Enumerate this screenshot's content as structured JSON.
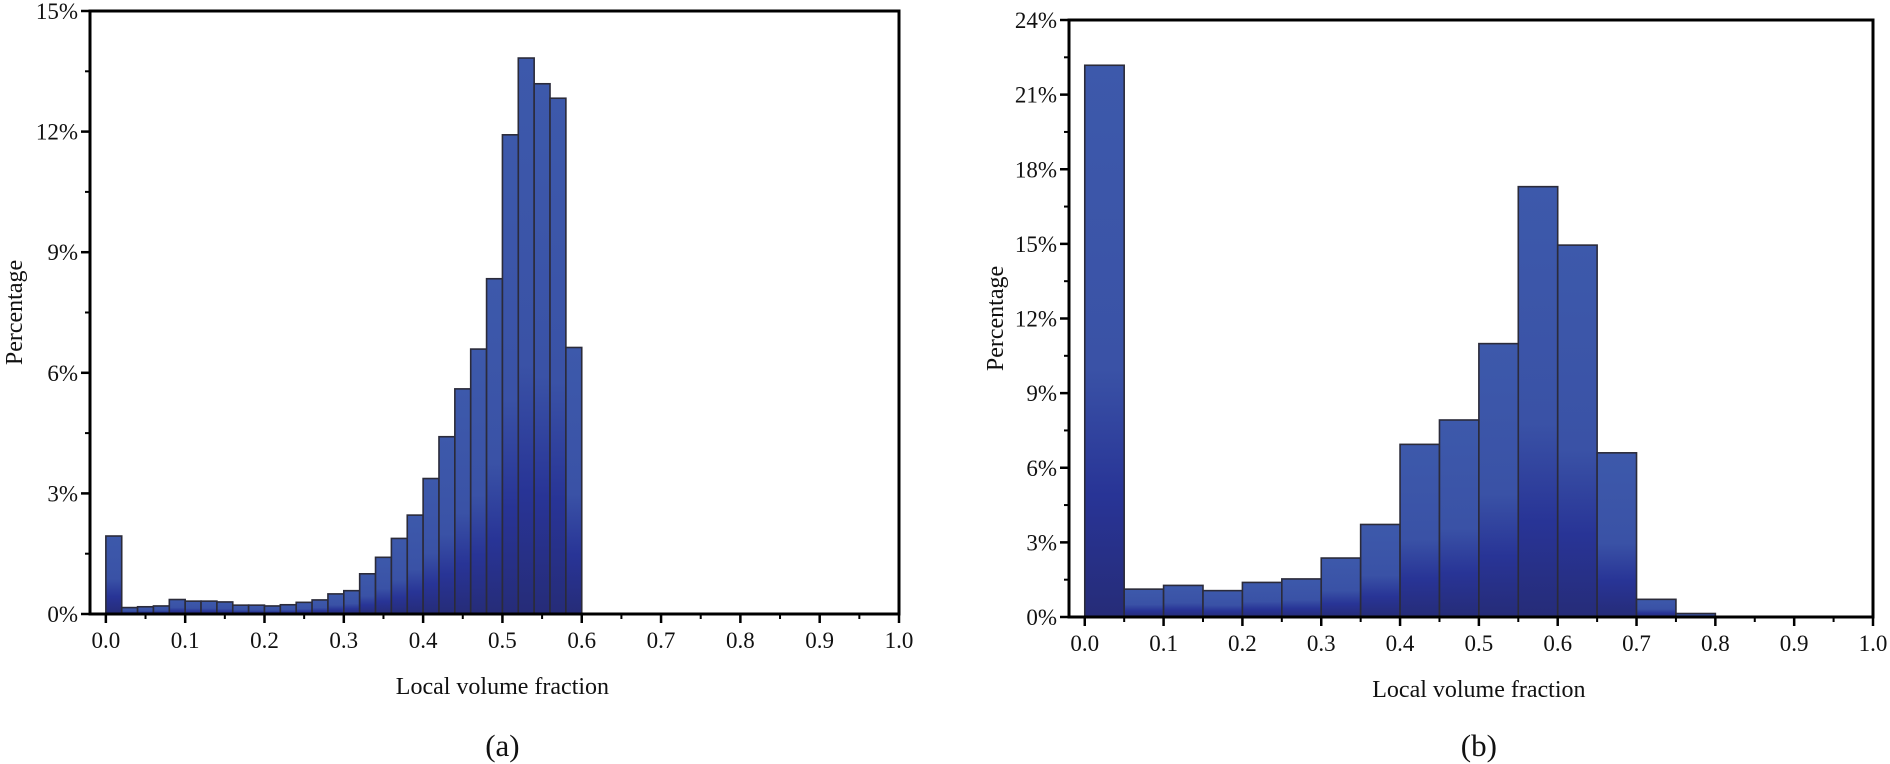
{
  "chart_data": [
    {
      "type": "bar",
      "panel_label": "(a)",
      "xlabel": "Local volume fraction",
      "ylabel": "Percentage",
      "xlim": [
        -0.02,
        1.0
      ],
      "ylim": [
        0,
        15
      ],
      "xticks": [
        "0.0",
        "0.1",
        "0.2",
        "0.3",
        "0.4",
        "0.5",
        "0.6",
        "0.7",
        "0.8",
        "0.9",
        "1.0"
      ],
      "yticks": [
        "0%",
        "3%",
        "6%",
        "9%",
        "12%",
        "15%"
      ],
      "bin_width": 0.02,
      "bin_starts": [
        0.0,
        0.02,
        0.04,
        0.06,
        0.08,
        0.1,
        0.12,
        0.14,
        0.16,
        0.18,
        0.2,
        0.22,
        0.24,
        0.26,
        0.28,
        0.3,
        0.32,
        0.34,
        0.36,
        0.38,
        0.4,
        0.42,
        0.44,
        0.46,
        0.48,
        0.5,
        0.52,
        0.54,
        0.56,
        0.58
      ],
      "values": [
        1.94,
        0.16,
        0.18,
        0.2,
        0.36,
        0.32,
        0.32,
        0.3,
        0.22,
        0.22,
        0.2,
        0.23,
        0.29,
        0.35,
        0.5,
        0.58,
        1.0,
        1.41,
        1.88,
        2.46,
        3.37,
        4.41,
        5.6,
        6.59,
        8.34,
        11.92,
        13.83,
        13.19,
        12.83,
        6.63
      ],
      "grid": false,
      "colors": {
        "bar_top": "#3c58aa",
        "bar_bottom": "#28308a",
        "edge": "#2b2b3a"
      }
    },
    {
      "type": "bar",
      "panel_label": "(b)",
      "xlabel": "Local volume fraction",
      "ylabel": "Percentage",
      "xlim": [
        -0.02,
        1.0
      ],
      "ylim": [
        0,
        24
      ],
      "xticks": [
        "0.0",
        "0.1",
        "0.2",
        "0.3",
        "0.4",
        "0.5",
        "0.6",
        "0.7",
        "0.8",
        "0.9",
        "1.0"
      ],
      "yticks": [
        "0%",
        "3%",
        "6%",
        "9%",
        "12%",
        "15%",
        "18%",
        "21%",
        "24%"
      ],
      "bin_width": 0.05,
      "bin_starts": [
        0.0,
        0.05,
        0.1,
        0.15,
        0.2,
        0.25,
        0.3,
        0.35,
        0.4,
        0.45,
        0.5,
        0.55,
        0.6,
        0.65,
        0.7,
        0.75
      ],
      "values": [
        22.18,
        1.12,
        1.27,
        1.06,
        1.39,
        1.53,
        2.37,
        3.72,
        6.94,
        7.92,
        10.99,
        17.3,
        14.95,
        6.6,
        0.71,
        0.14
      ],
      "grid": false,
      "colors": {
        "bar_top": "#3c58aa",
        "bar_bottom": "#28308a",
        "edge": "#2b2b3a"
      }
    }
  ]
}
